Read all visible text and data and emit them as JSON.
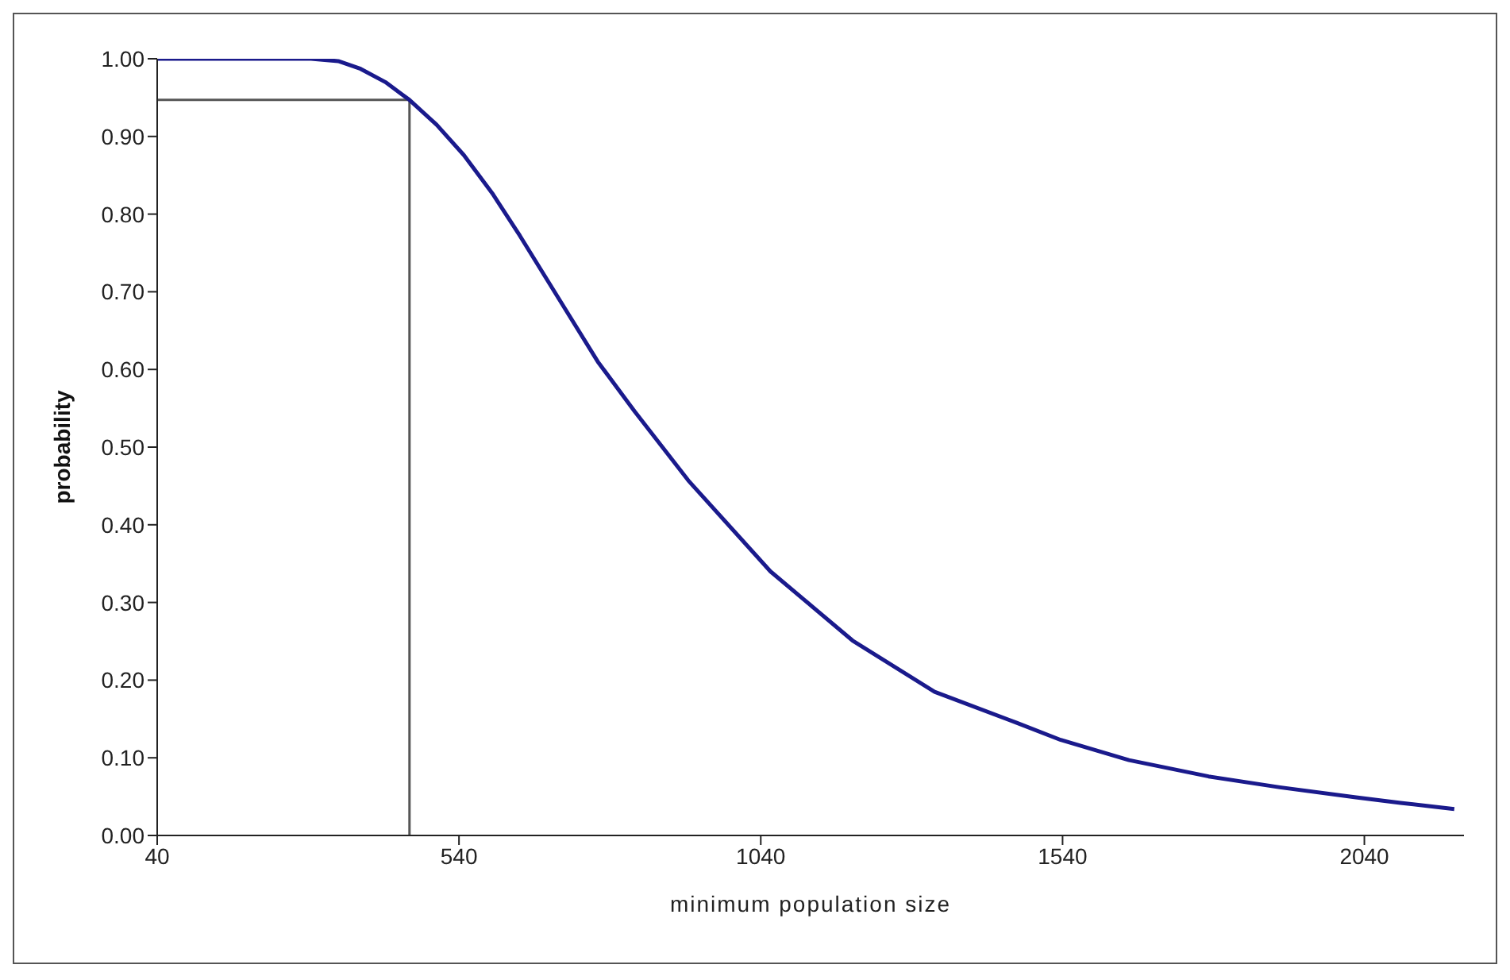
{
  "chart_data": {
    "type": "line",
    "xlabel": "minimum population size",
    "ylabel": "probability",
    "x": [
      40,
      150,
      295,
      340,
      377,
      418,
      458,
      503,
      548,
      595,
      641,
      711,
      770,
      831,
      920,
      1056,
      1192,
      1328,
      1464,
      1537,
      1650,
      1782,
      1900,
      2026,
      2100,
      2189
    ],
    "series": [
      {
        "color": "#1a1a8c",
        "values": [
          1.0,
          1.0,
          1.0,
          0.997,
          0.987,
          0.97,
          0.947,
          0.915,
          0.876,
          0.827,
          0.772,
          0.684,
          0.61,
          0.546,
          0.457,
          0.34,
          0.251,
          0.185,
          0.145,
          0.123,
          0.097,
          0.076,
          0.062,
          0.049,
          0.042,
          0.034
        ]
      }
    ],
    "xlim": [
      40,
      2205
    ],
    "xticks": [
      40,
      540,
      1040,
      1540,
      2040
    ],
    "ylim": [
      0,
      1
    ],
    "yticks": [
      {
        "value": 0,
        "label": "0.00"
      },
      {
        "value": 0.1,
        "label": "0.10"
      },
      {
        "value": 0.2,
        "label": "0.20"
      },
      {
        "value": 0.3,
        "label": "0.30"
      },
      {
        "value": 0.4,
        "label": "0.40"
      },
      {
        "value": 0.5,
        "label": "0.50"
      },
      {
        "value": 0.6,
        "label": "0.60"
      },
      {
        "value": 0.7,
        "label": "0.70"
      },
      {
        "value": 0.8,
        "label": "0.80"
      },
      {
        "value": 0.9,
        "label": "0.90"
      },
      {
        "value": 1,
        "label": "1.00"
      }
    ],
    "ref_lines": [
      {
        "axis": "x",
        "value": 458,
        "color": "#555555"
      },
      {
        "axis": "y",
        "value": 0.947,
        "color": "#555555"
      }
    ],
    "grid": false,
    "legend": false,
    "marker": "none",
    "line_style": "solid"
  }
}
